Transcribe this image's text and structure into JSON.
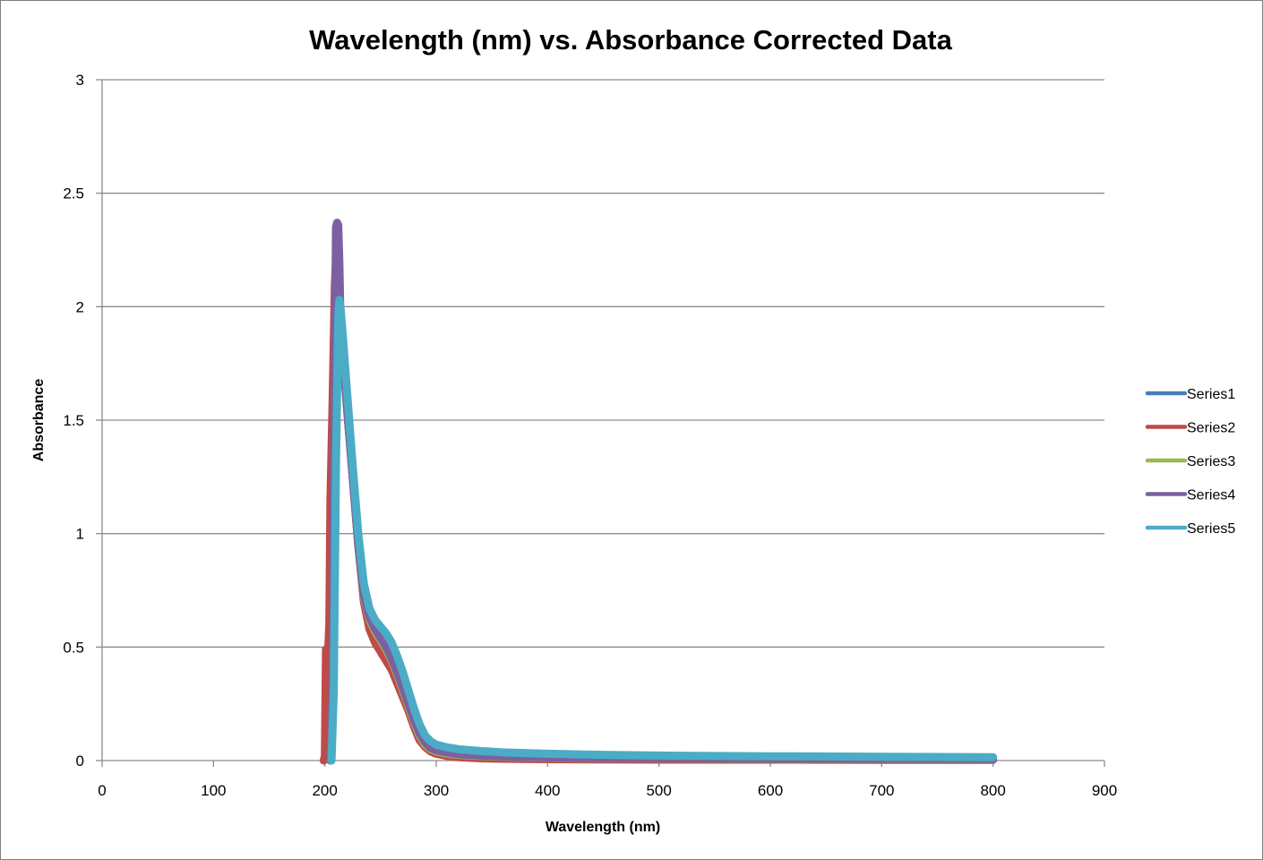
{
  "chart_data": {
    "type": "line",
    "title": "Wavelength (nm) vs. Absorbance Corrected Data",
    "xlabel": "Wavelength (nm)",
    "ylabel": "Absorbance",
    "xlim": [
      0,
      900
    ],
    "ylim": [
      0,
      3
    ],
    "xticks": [
      0,
      100,
      200,
      300,
      400,
      500,
      600,
      700,
      800,
      900
    ],
    "yticks": [
      0,
      0.5,
      1,
      1.5,
      2,
      2.5,
      3
    ],
    "ytick_labels": [
      "0",
      "0.5",
      "1",
      "1.5",
      "2",
      "2.5",
      "3"
    ],
    "grid": "horizontal",
    "legend_position": "right",
    "series": [
      {
        "name": "Series1",
        "color": "#4a7ebb",
        "x": [
          205,
          207,
          209,
          211,
          213,
          216,
          220,
          225,
          230,
          235,
          240,
          245,
          250,
          255,
          260,
          265,
          270,
          275,
          280,
          285,
          290,
          295,
          300,
          310,
          320,
          340,
          360,
          400,
          450,
          500,
          600,
          700,
          800
        ],
        "y": [
          0,
          0.2,
          1.6,
          2.3,
          2.0,
          1.8,
          1.55,
          1.25,
          0.95,
          0.72,
          0.62,
          0.57,
          0.53,
          0.49,
          0.44,
          0.38,
          0.31,
          0.24,
          0.17,
          0.11,
          0.07,
          0.05,
          0.04,
          0.03,
          0.025,
          0.02,
          0.017,
          0.013,
          0.01,
          0.009,
          0.008,
          0.007,
          0.006
        ]
      },
      {
        "name": "Series2",
        "color": "#be4b48",
        "x": [
          199,
          200,
          201,
          202,
          203,
          204,
          205,
          207,
          209,
          211,
          213,
          216,
          220,
          225,
          230,
          235,
          240,
          245,
          250,
          255,
          260,
          265,
          270,
          275,
          280,
          285,
          290,
          295,
          300,
          310,
          320,
          340,
          360,
          400,
          450,
          500,
          600,
          700,
          800
        ],
        "y": [
          0,
          0.02,
          0.49,
          0.48,
          0.49,
          0.6,
          1.15,
          1.6,
          2.1,
          2.3,
          2.0,
          1.8,
          1.55,
          1.25,
          0.95,
          0.7,
          0.58,
          0.52,
          0.48,
          0.44,
          0.4,
          0.34,
          0.28,
          0.22,
          0.15,
          0.09,
          0.06,
          0.04,
          0.03,
          0.02,
          0.015,
          0.01,
          0.008,
          0.006,
          0.005,
          0.004,
          0.004,
          0.003,
          0.003
        ]
      },
      {
        "name": "Series3",
        "color": "#98b954",
        "x": [
          205,
          207,
          209,
          211,
          213,
          216,
          220,
          225,
          230,
          235,
          240,
          245,
          250,
          255,
          260,
          265,
          270,
          275,
          280,
          285,
          290,
          295,
          300,
          310,
          320,
          340,
          360,
          400,
          450,
          500,
          600,
          700,
          800
        ],
        "y": [
          0,
          0.2,
          1.6,
          2.3,
          2.0,
          1.8,
          1.55,
          1.25,
          0.95,
          0.72,
          0.62,
          0.57,
          0.53,
          0.49,
          0.44,
          0.38,
          0.31,
          0.24,
          0.17,
          0.11,
          0.07,
          0.05,
          0.04,
          0.03,
          0.025,
          0.02,
          0.017,
          0.013,
          0.01,
          0.009,
          0.008,
          0.007,
          0.006
        ]
      },
      {
        "name": "Series4",
        "color": "#7d60a0",
        "x": [
          205,
          207,
          209,
          210,
          211,
          212,
          213,
          214,
          216,
          220,
          225,
          230,
          235,
          240,
          245,
          250,
          255,
          260,
          265,
          270,
          275,
          280,
          285,
          290,
          295,
          300,
          310,
          320,
          340,
          360,
          400,
          450,
          500,
          600,
          700,
          800
        ],
        "y": [
          0,
          0.3,
          1.8,
          2.35,
          2.37,
          2.36,
          2.2,
          1.95,
          1.8,
          1.55,
          1.25,
          0.95,
          0.73,
          0.63,
          0.58,
          0.54,
          0.5,
          0.45,
          0.39,
          0.32,
          0.25,
          0.18,
          0.12,
          0.08,
          0.055,
          0.045,
          0.035,
          0.028,
          0.022,
          0.018,
          0.014,
          0.011,
          0.01,
          0.009,
          0.008,
          0.007
        ]
      },
      {
        "name": "Series5",
        "color": "#4bacc6",
        "x": [
          206,
          208,
          210,
          212,
          213,
          214,
          216,
          220,
          225,
          230,
          235,
          240,
          245,
          250,
          255,
          260,
          265,
          270,
          275,
          280,
          285,
          290,
          295,
          300,
          310,
          320,
          340,
          360,
          400,
          450,
          500,
          600,
          700,
          800
        ],
        "y": [
          0,
          0.3,
          1.3,
          1.95,
          2.03,
          2.0,
          1.88,
          1.62,
          1.3,
          1.0,
          0.78,
          0.67,
          0.62,
          0.59,
          0.56,
          0.52,
          0.46,
          0.39,
          0.31,
          0.23,
          0.16,
          0.11,
          0.085,
          0.07,
          0.058,
          0.05,
          0.042,
          0.036,
          0.03,
          0.025,
          0.022,
          0.019,
          0.017,
          0.015
        ]
      }
    ]
  }
}
